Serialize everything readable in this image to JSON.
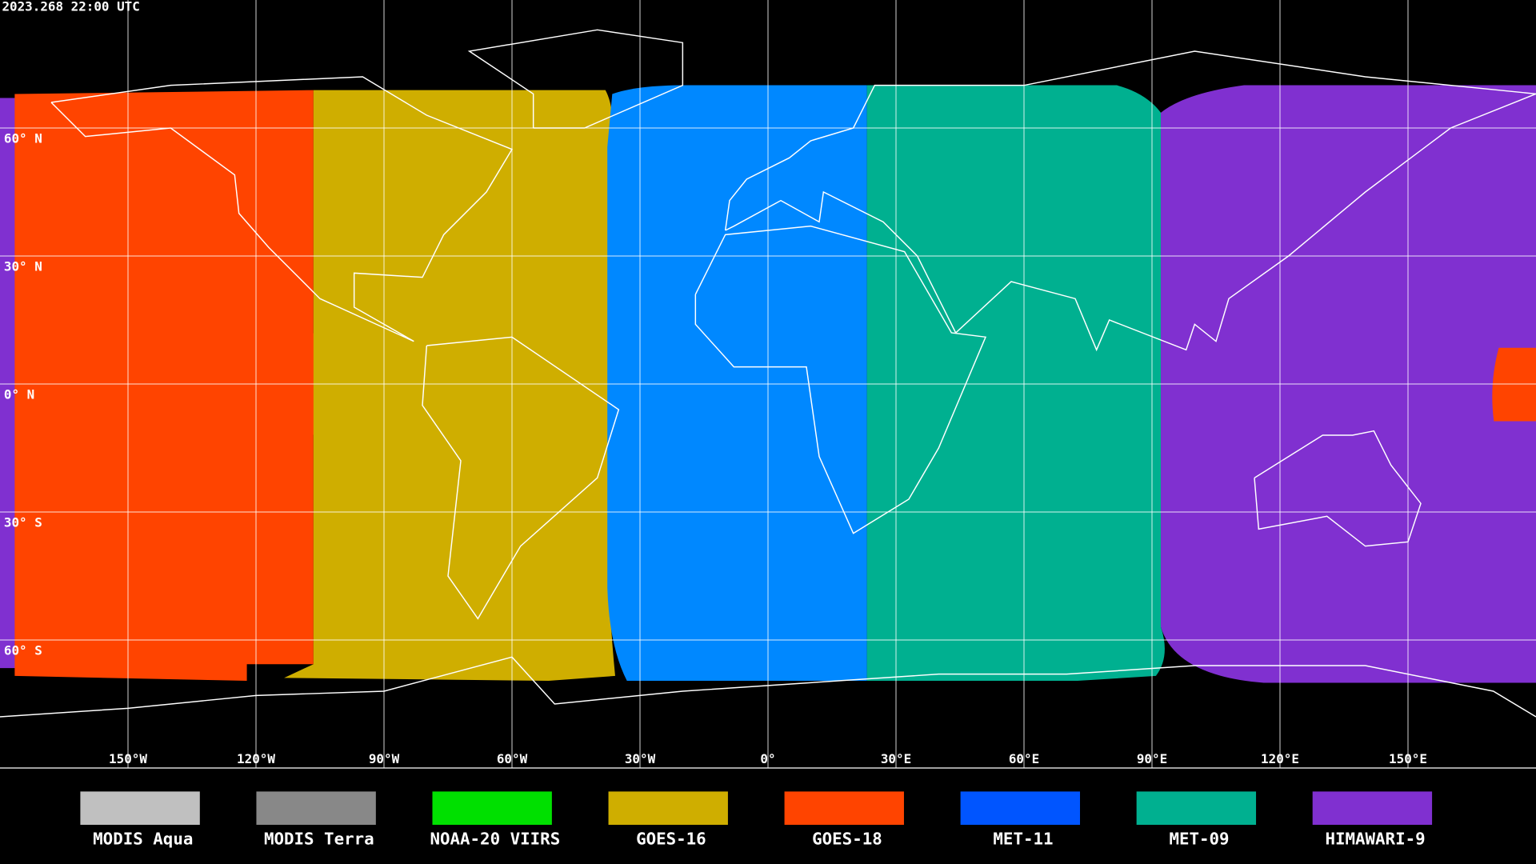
{
  "header": {
    "timestamp": "2023.268 22:00 UTC"
  },
  "map": {
    "lat_ticks": [
      {
        "value": 60,
        "label": "60° N"
      },
      {
        "value": 30,
        "label": "30° N"
      },
      {
        "value": 0,
        "label": "0° N"
      },
      {
        "value": -30,
        "label": "30° S"
      },
      {
        "value": -60,
        "label": "60° S"
      }
    ],
    "lon_ticks": [
      {
        "value": -150,
        "label": "150°W"
      },
      {
        "value": -120,
        "label": "120°W"
      },
      {
        "value": -90,
        "label": "90°W"
      },
      {
        "value": -60,
        "label": "60°W"
      },
      {
        "value": -30,
        "label": "30°W"
      },
      {
        "value": 0,
        "label": "0°"
      },
      {
        "value": 30,
        "label": "30°E"
      },
      {
        "value": 60,
        "label": "60°E"
      },
      {
        "value": 90,
        "label": "90°E"
      },
      {
        "value": 120,
        "label": "120°E"
      },
      {
        "value": 150,
        "label": "150°E"
      }
    ]
  },
  "legend": [
    {
      "name": "MODIS Aqua",
      "color": "#c0c0c0"
    },
    {
      "name": "MODIS Terra",
      "color": "#888888"
    },
    {
      "name": "NOAA-20 VIIRS",
      "color": "#00e000"
    },
    {
      "name": "GOES-16",
      "color": "#cfae00"
    },
    {
      "name": "GOES-18",
      "color": "#ff4400"
    },
    {
      "name": "MET-11",
      "color": "#0055ff"
    },
    {
      "name": "MET-09",
      "color": "#00b090"
    },
    {
      "name": "HIMAWARI-9",
      "color": "#8030d0"
    }
  ]
}
